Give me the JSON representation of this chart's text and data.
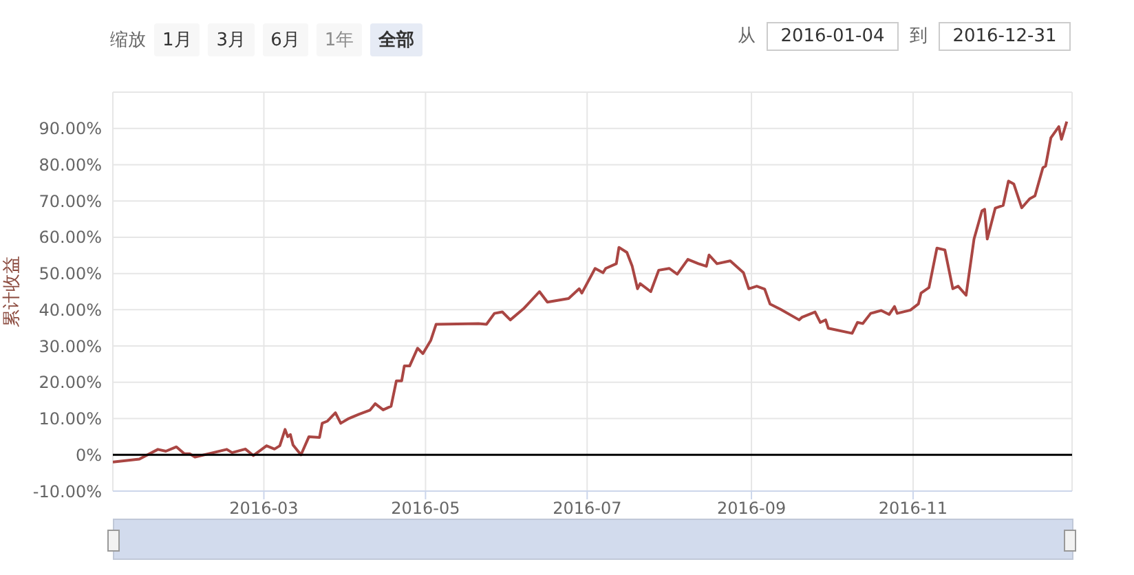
{
  "chart_data": {
    "type": "line",
    "ylabel": "累计收益",
    "annotations": [
      "缩放",
      "1月",
      "3月",
      "6月",
      "1年",
      "全部",
      "从",
      "2016-01-04",
      "到",
      "2016-12-31"
    ],
    "x": [
      "2016-01-04",
      "2016-01-14",
      "2016-01-21",
      "2016-01-24",
      "2016-01-28",
      "2016-01-31",
      "2016-02-02",
      "2016-02-04",
      "2016-02-16",
      "2016-02-18",
      "2016-02-23",
      "2016-02-26",
      "2016-03-02",
      "2016-03-05",
      "2016-03-07",
      "2016-03-09",
      "2016-03-10",
      "2016-03-11",
      "2016-03-12",
      "2016-03-15",
      "2016-03-18",
      "2016-03-22",
      "2016-03-23",
      "2016-03-25",
      "2016-03-28",
      "2016-03-30",
      "2016-04-02",
      "2016-04-06",
      "2016-04-10",
      "2016-04-12",
      "2016-04-15",
      "2016-04-18",
      "2016-04-20",
      "2016-04-22",
      "2016-04-23",
      "2016-04-25",
      "2016-04-28",
      "2016-04-30",
      "2016-05-03",
      "2016-05-05",
      "2016-05-21",
      "2016-05-24",
      "2016-05-27",
      "2016-05-30",
      "2016-06-02",
      "2016-06-07",
      "2016-06-13",
      "2016-06-16",
      "2016-06-24",
      "2016-06-28",
      "2016-06-29",
      "2016-07-04",
      "2016-07-07",
      "2016-07-08",
      "2016-07-12",
      "2016-07-13",
      "2016-07-16",
      "2016-07-18",
      "2016-07-20",
      "2016-07-21",
      "2016-07-25",
      "2016-07-28",
      "2016-08-01",
      "2016-08-04",
      "2016-08-08",
      "2016-08-12",
      "2016-08-15",
      "2016-08-16",
      "2016-08-19",
      "2016-08-24",
      "2016-08-29",
      "2016-08-31",
      "2016-09-03",
      "2016-09-06",
      "2016-09-08",
      "2016-09-12",
      "2016-09-19",
      "2016-09-20",
      "2016-09-25",
      "2016-09-27",
      "2016-09-29",
      "2016-09-30",
      "2016-10-09",
      "2016-10-11",
      "2016-10-13",
      "2016-10-16",
      "2016-10-20",
      "2016-10-23",
      "2016-10-25",
      "2016-10-26",
      "2016-10-31",
      "2016-11-03",
      "2016-11-04",
      "2016-11-07",
      "2016-11-10",
      "2016-11-13",
      "2016-11-16",
      "2016-11-18",
      "2016-11-21",
      "2016-11-24",
      "2016-11-27",
      "2016-11-28",
      "2016-11-29",
      "2016-12-02",
      "2016-12-05",
      "2016-12-07",
      "2016-12-09",
      "2016-12-12",
      "2016-12-15",
      "2016-12-17",
      "2016-12-20",
      "2016-12-21",
      "2016-12-23",
      "2016-12-26",
      "2016-12-27",
      "2016-12-29"
    ],
    "series": [
      {
        "color": "#aa4643",
        "values": [
          -2,
          -1.2,
          1.5,
          1,
          2.2,
          0.3,
          0.3,
          -0.6,
          1.5,
          0.6,
          1.6,
          -0.2,
          2.5,
          1.6,
          2.5,
          7,
          5,
          5.6,
          2.7,
          0,
          5,
          4.8,
          8.7,
          9.3,
          11.6,
          8.7,
          10,
          11.2,
          12.3,
          14.1,
          12.4,
          13.4,
          20.4,
          20.4,
          24.5,
          24.5,
          29.4,
          27.9,
          31.6,
          36,
          36.2,
          36,
          39,
          39.4,
          37.2,
          40.3,
          45,
          42.1,
          43.1,
          45.8,
          44.6,
          51.4,
          50.2,
          51.4,
          52.7,
          57.2,
          55.8,
          52,
          45.8,
          47.2,
          45,
          50.9,
          51.4,
          49.8,
          53.9,
          52.7,
          52,
          55.1,
          52.7,
          53.5,
          50.2,
          45.8,
          46.5,
          45.7,
          41.6,
          40.1,
          37.2,
          37.9,
          39.4,
          36.5,
          37.2,
          34.9,
          33.5,
          36.5,
          36.2,
          39,
          39.8,
          38.7,
          40.9,
          39,
          39.9,
          41.6,
          44.6,
          46.1,
          57,
          56.5,
          45.8,
          46.5,
          44,
          59.5,
          67.3,
          67.7,
          59.5,
          68,
          68.8,
          75.5,
          74.7,
          68.1,
          70.6,
          71.4,
          79.2,
          79.6,
          87.4,
          90.5,
          87,
          91.9
        ]
      }
    ],
    "xlim": [
      "2016-01-04",
      "2016-12-31"
    ],
    "xticks": [
      {
        "value": "2016-03-01",
        "label": "2016-03"
      },
      {
        "value": "2016-05-01",
        "label": "2016-05"
      },
      {
        "value": "2016-07-01",
        "label": "2016-07"
      },
      {
        "value": "2016-09-01",
        "label": "2016-09"
      },
      {
        "value": "2016-11-01",
        "label": "2016-11"
      }
    ],
    "ylim": [
      -10,
      100
    ],
    "yticks": [
      {
        "value": -10,
        "label": "-10.00%"
      },
      {
        "value": 0,
        "label": "0%"
      },
      {
        "value": 10,
        "label": "10.00%"
      },
      {
        "value": 20,
        "label": "20.00%"
      },
      {
        "value": 30,
        "label": "30.00%"
      },
      {
        "value": 40,
        "label": "40.00%"
      },
      {
        "value": 50,
        "label": "50.00%"
      },
      {
        "value": 60,
        "label": "60.00%"
      },
      {
        "value": 70,
        "label": "70.00%"
      },
      {
        "value": 80,
        "label": "80.00%"
      },
      {
        "value": 90,
        "label": "90.00%"
      },
      {
        "value": 100,
        "label": null
      }
    ],
    "ref_lines": [
      {
        "axis": "y",
        "value": 0,
        "color": "#000000"
      }
    ],
    "grid": true,
    "marker": "none",
    "line_style": "solid"
  }
}
